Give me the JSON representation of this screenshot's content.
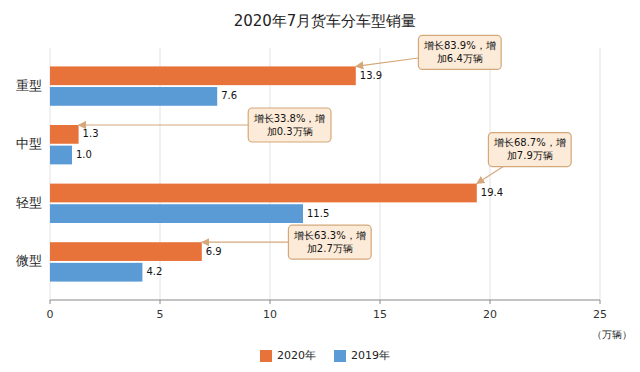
{
  "chart_data": {
    "type": "bar",
    "orientation": "horizontal",
    "title": "2020年7月货车分车型销量",
    "xlabel": "（万辆）",
    "categories": [
      "重型",
      "中型",
      "轻型",
      "微型"
    ],
    "series": [
      {
        "name": "2020年",
        "color": "#E8733A",
        "values": [
          13.9,
          1.3,
          19.4,
          6.9
        ],
        "value_labels": [
          "13.9",
          "1.3",
          "19.4",
          "6.9"
        ]
      },
      {
        "name": "2019年",
        "color": "#5B9BD5",
        "values": [
          7.6,
          1.0,
          11.5,
          4.2
        ],
        "value_labels": [
          "7.6",
          "1.0",
          "11.5",
          "4.2"
        ]
      }
    ],
    "xlim": [
      0,
      25
    ],
    "xticks": [
      0,
      5,
      10,
      15,
      20,
      25
    ],
    "grid": true,
    "legend": "bottom",
    "data_labels": true,
    "annotations": [
      "增长83.9%，增\n加6.4万辆",
      "增长33.8%，增\n加0.3万辆",
      "增长68.7%，增\n加7.9万辆",
      "增长63.3%，增\n加2.7万辆"
    ]
  }
}
